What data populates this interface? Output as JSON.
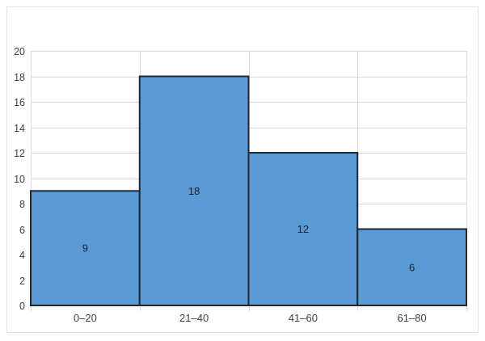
{
  "chart_data": {
    "type": "bar",
    "subtype": "histogram",
    "title": "",
    "xlabel": "",
    "ylabel": "",
    "categories": [
      "0–20",
      "21–40",
      "41–60",
      "61–80"
    ],
    "values": [
      9,
      18,
      12,
      6
    ],
    "data_labels": [
      "9",
      "18",
      "12",
      "6"
    ],
    "yticks": [
      0,
      2,
      4,
      6,
      8,
      10,
      12,
      14,
      16,
      18,
      20
    ],
    "ylim": [
      0,
      20
    ],
    "grid": true,
    "legend": "none",
    "bars_touching": true,
    "colors": {
      "bar_fill": "#5B9BD5",
      "bar_border": "#23272E",
      "gridline": "#D9D9D9",
      "axis_tick": "#D9D9D9",
      "frame_border": "#E3E3E3",
      "tick_label_text": "#3F3F3F",
      "data_label_text": "#1F1F1F",
      "background": "#FFFFFF"
    }
  }
}
